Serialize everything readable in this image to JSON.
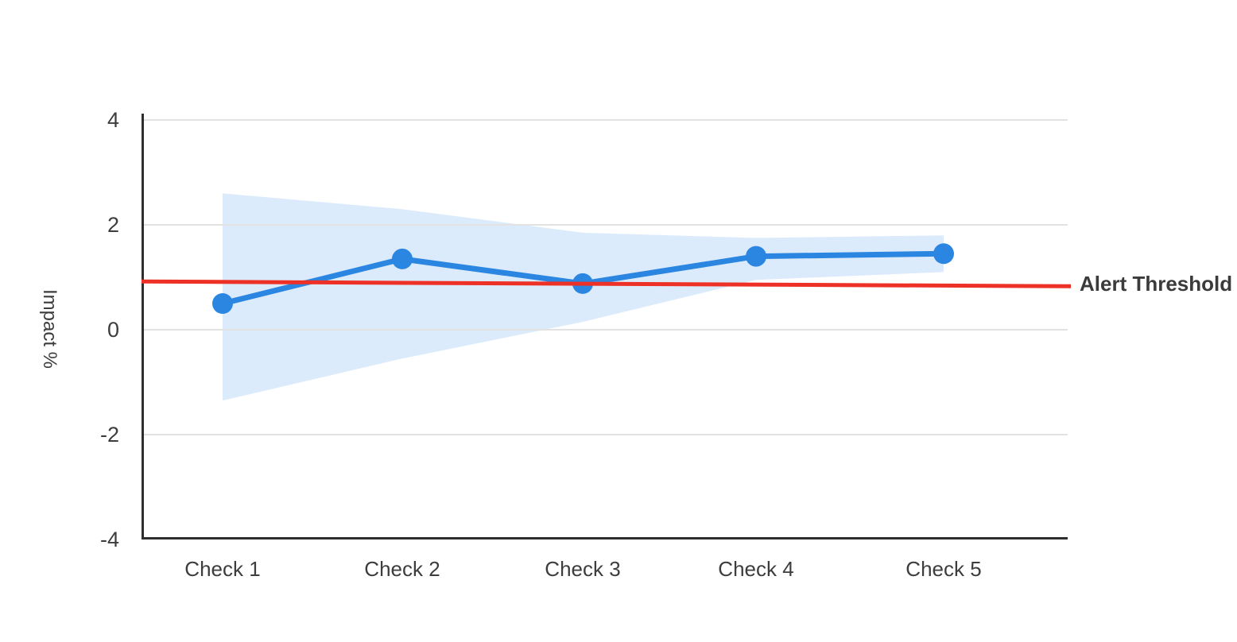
{
  "chart_data": {
    "type": "line",
    "title": "",
    "categories": [
      "Check 1",
      "Check 2",
      "Check 3",
      "Check 4",
      "Check 5"
    ],
    "series": [
      {
        "name": "Impact",
        "values": [
          0.5,
          1.35,
          0.88,
          1.4,
          1.45
        ]
      }
    ],
    "confidence_band": {
      "upper": [
        2.6,
        2.3,
        1.85,
        1.75,
        1.8
      ],
      "lower": [
        -1.35,
        -0.55,
        0.15,
        0.95,
        1.1
      ]
    },
    "threshold": {
      "label": "Alert Threshold",
      "start_value": 0.92,
      "end_value": 0.83
    },
    "xlabel": "",
    "ylabel": "Impact %",
    "ylim": [
      -4,
      4
    ],
    "ytick_values": [
      4,
      2,
      0,
      -2,
      -4
    ],
    "ytick_labels": [
      "4",
      "2",
      "0",
      "-2",
      "-4"
    ],
    "grid": "horizontal",
    "legend": "none",
    "colors": {
      "line": "#2b86e2",
      "marker": "#2b86e2",
      "band": "#dcebfb",
      "threshold": "#ee3126",
      "grid": "#e2e2e2",
      "axis": "#2e2e2e",
      "text": "#3d3d3d"
    }
  }
}
